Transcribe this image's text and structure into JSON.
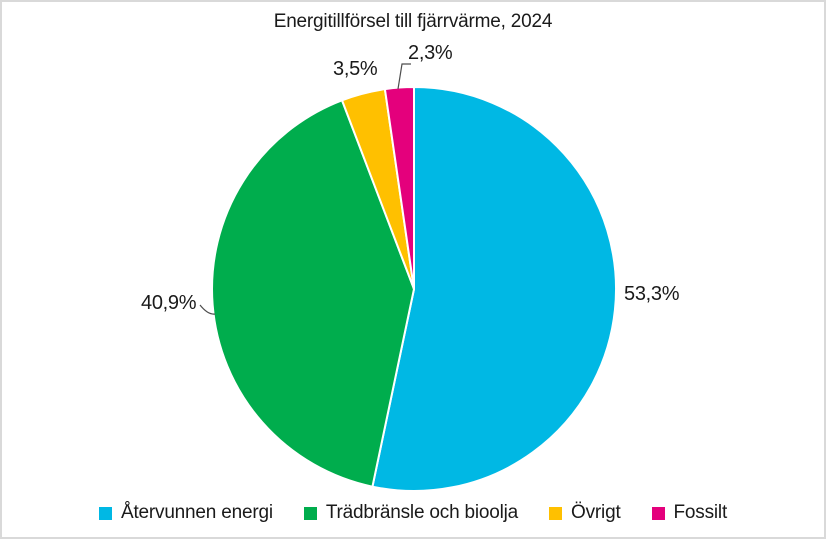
{
  "chart_data": {
    "type": "pie",
    "title": "Energitillförsel till fjärrvärme, 2024",
    "unit": "%",
    "start_angle_deg": 0,
    "direction": "clockwise",
    "legend_position": "bottom",
    "background_color": "#ffffff",
    "frame_color": "#d9d9d9",
    "slices": [
      {
        "name": "Återvunnen energi",
        "value": 53.3,
        "label": "53,3%",
        "color": "#00B8E4"
      },
      {
        "name": "Trädbränsle och bioolja",
        "value": 40.9,
        "label": "40,9%",
        "color": "#00AD4D"
      },
      {
        "name": "Övrigt",
        "value": 3.5,
        "label": "3,5%",
        "color": "#FFC000"
      },
      {
        "name": "Fossilt",
        "value": 2.3,
        "label": "2,3%",
        "color": "#E4007C"
      }
    ]
  }
}
